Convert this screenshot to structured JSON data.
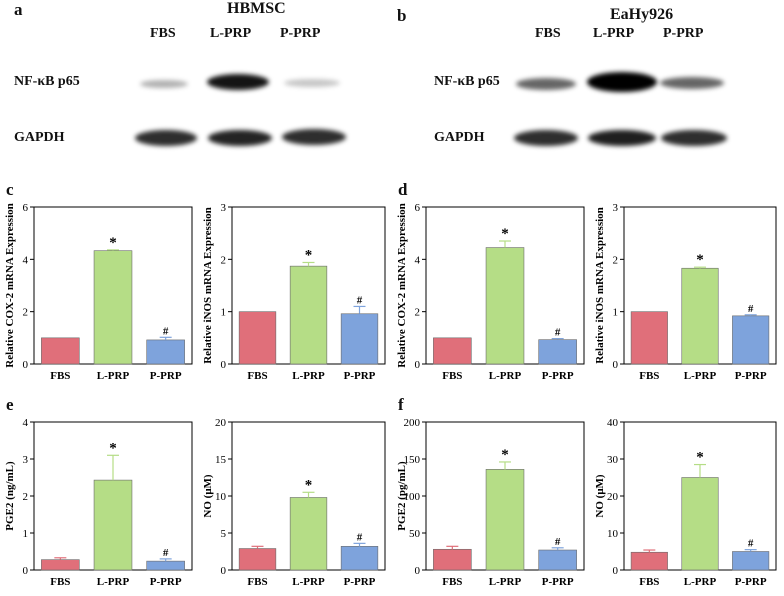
{
  "panels": {
    "a": "a",
    "b": "b",
    "c": "c",
    "d": "d",
    "e": "e",
    "f": "f"
  },
  "blots": [
    {
      "id": "a",
      "title": "HBMSC",
      "lanes": [
        "FBS",
        "L-PRP",
        "P-PRP"
      ],
      "rows": [
        {
          "label": "NF-κB p65",
          "intensity": [
            0.35,
            0.95,
            0.25
          ]
        },
        {
          "label": "GAPDH",
          "intensity": [
            0.85,
            0.9,
            0.85
          ]
        }
      ]
    },
    {
      "id": "b",
      "title": "EaHy926",
      "lanes": [
        "FBS",
        "L-PRP",
        "P-PRP"
      ],
      "rows": [
        {
          "label": "NF-κB p65",
          "intensity": [
            0.65,
            1.0,
            0.6
          ]
        },
        {
          "label": "GAPDH",
          "intensity": [
            0.85,
            0.9,
            0.85
          ]
        }
      ]
    }
  ],
  "colors": {
    "FBS": "#e06f7a",
    "L-PRP": "#b5dd86",
    "P-PRP": "#7ea3dc",
    "axis": "#000000"
  },
  "chart_data": [
    {
      "id": "c1",
      "type": "bar",
      "panel": "c",
      "categories": [
        "FBS",
        "L-PRP",
        "P-PRP"
      ],
      "values": [
        1.0,
        4.33,
        0.92
      ],
      "errors": [
        0,
        0.03,
        0.1
      ],
      "marks": [
        "",
        "*",
        "#"
      ],
      "ylabel": "Relative COX-2 mRNA Expression",
      "ylim": [
        0,
        6
      ],
      "yticks": [
        0,
        2,
        4,
        6
      ]
    },
    {
      "id": "c2",
      "type": "bar",
      "panel": "c",
      "categories": [
        "FBS",
        "L-PRP",
        "P-PRP"
      ],
      "values": [
        1.0,
        1.87,
        0.96
      ],
      "errors": [
        0,
        0.07,
        0.14
      ],
      "marks": [
        "",
        "*",
        "#"
      ],
      "ylabel": "Relative iNOS mRNA Expression",
      "ylim": [
        0,
        3
      ],
      "yticks": [
        0,
        1,
        2,
        3
      ]
    },
    {
      "id": "d1",
      "type": "bar",
      "panel": "d",
      "categories": [
        "FBS",
        "L-PRP",
        "P-PRP"
      ],
      "values": [
        1.0,
        4.45,
        0.93
      ],
      "errors": [
        0,
        0.25,
        0.04
      ],
      "marks": [
        "",
        "*",
        "#"
      ],
      "ylabel": "Relative COX-2 mRNA Expression",
      "ylim": [
        0,
        6
      ],
      "yticks": [
        0,
        2,
        4,
        6
      ]
    },
    {
      "id": "d2",
      "type": "bar",
      "panel": "d",
      "categories": [
        "FBS",
        "L-PRP",
        "P-PRP"
      ],
      "values": [
        1.0,
        1.83,
        0.92
      ],
      "errors": [
        0,
        0.02,
        0.02
      ],
      "marks": [
        "",
        "*",
        "#"
      ],
      "ylabel": "Relative iNOS mRNA Expression",
      "ylim": [
        0,
        3
      ],
      "yticks": [
        0,
        1,
        2,
        3
      ]
    },
    {
      "id": "e1",
      "type": "bar",
      "panel": "e",
      "categories": [
        "FBS",
        "L-PRP",
        "P-PRP"
      ],
      "values": [
        0.28,
        2.43,
        0.24
      ],
      "errors": [
        0.05,
        0.67,
        0.06
      ],
      "marks": [
        "",
        "*",
        "#"
      ],
      "ylabel": "PGE2 (ng/mL)",
      "ylim": [
        0,
        4
      ],
      "yticks": [
        0,
        1,
        2,
        3,
        4
      ]
    },
    {
      "id": "e2",
      "type": "bar",
      "panel": "e",
      "categories": [
        "FBS",
        "L-PRP",
        "P-PRP"
      ],
      "values": [
        2.9,
        9.8,
        3.2
      ],
      "errors": [
        0.3,
        0.7,
        0.4
      ],
      "marks": [
        "",
        "*",
        "#"
      ],
      "ylabel": "NO (μM)",
      "ylim": [
        0,
        20
      ],
      "yticks": [
        0,
        5,
        10,
        15,
        20
      ]
    },
    {
      "id": "f1",
      "type": "bar",
      "panel": "f",
      "categories": [
        "FBS",
        "L-PRP",
        "P-PRP"
      ],
      "values": [
        28,
        136,
        27
      ],
      "errors": [
        4,
        10,
        3
      ],
      "marks": [
        "",
        "*",
        "#"
      ],
      "ylabel": "PGE2 (pg/mL)",
      "ylim": [
        0,
        200
      ],
      "yticks": [
        0,
        50,
        100,
        150,
        200
      ]
    },
    {
      "id": "f2",
      "type": "bar",
      "panel": "f",
      "categories": [
        "FBS",
        "L-PRP",
        "P-PRP"
      ],
      "values": [
        4.8,
        25,
        5.0
      ],
      "errors": [
        0.6,
        3.5,
        0.5
      ],
      "marks": [
        "",
        "*",
        "#"
      ],
      "ylabel": "NO (μM)",
      "ylim": [
        0,
        40
      ],
      "yticks": [
        0,
        10,
        20,
        30,
        40
      ]
    }
  ]
}
